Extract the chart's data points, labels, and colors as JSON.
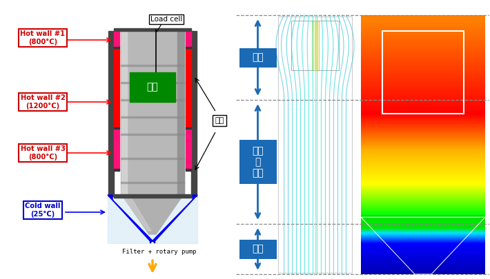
{
  "bg_color": "#ffffff",
  "labels": {
    "hot_wall_1": "Hot wall #1\n(800°C)",
    "hot_wall_2": "Hot wall #2\n(1200°C)",
    "hot_wall_3": "Hot wall #3\n(800°C)",
    "cold_wall": "Cold wall\n(25°C)",
    "load_cell": "Load cell",
    "insulation": "단열",
    "sample": "시료",
    "filter_pump": "Filter + rotary pump",
    "volatilization": "휘발",
    "precipitation": "석출\n및\n이송",
    "recovery": "회수"
  },
  "colors": {
    "hot_red": "#ff0000",
    "hot_pink": "#ff1177",
    "dark_gray": "#444444",
    "mid_gray": "#888888",
    "cold_blue": "#0000ee",
    "green_sample": "#008800",
    "label_red": "#cc0000",
    "label_blue": "#0000cc",
    "arrow_orange": "#ffaa00",
    "blue_box": "#1a6ab5",
    "cyl_main": "#b8b8b8",
    "cyl_light": "#d5d5d5",
    "cyl_dark": "#909090",
    "cone_color": "#aaaaaa",
    "cold_bg": "#ddeeff"
  }
}
